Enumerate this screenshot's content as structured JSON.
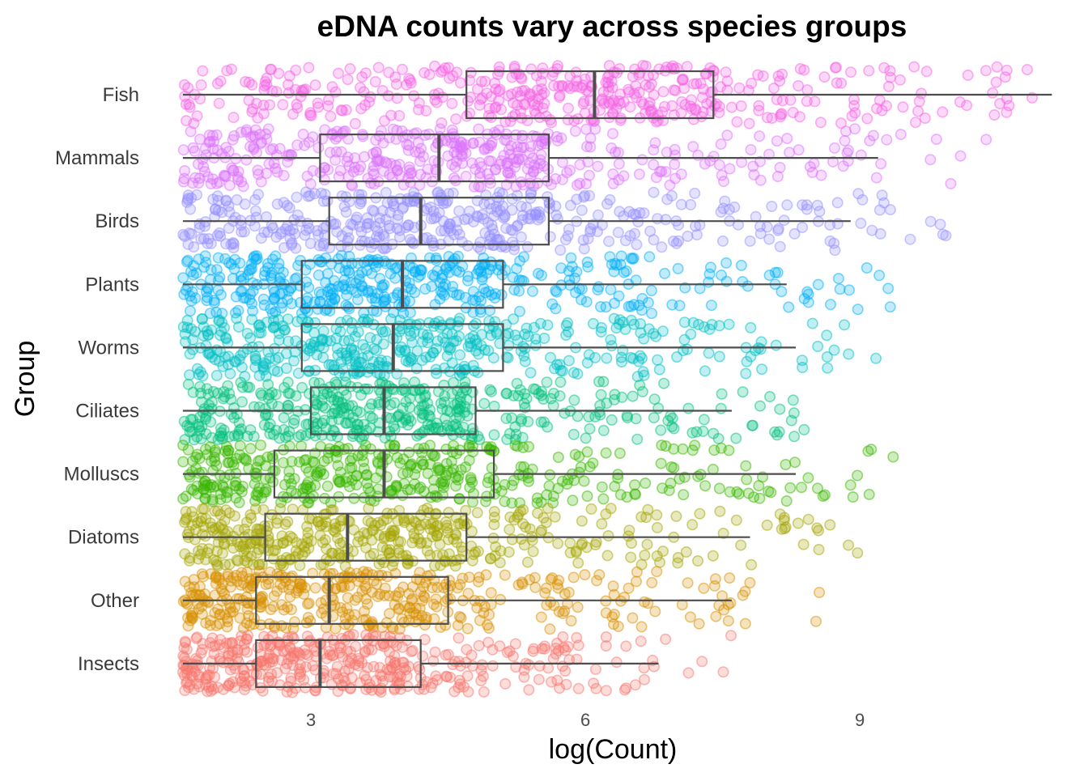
{
  "chart_data": {
    "type": "boxplot-jitter",
    "title": "eDNA counts vary across species groups",
    "xlabel": "log(Count)",
    "ylabel": "Group",
    "xlim": [
      1.3,
      11.3
    ],
    "xticks": [
      3,
      6,
      9
    ],
    "grid": false,
    "legend": "none",
    "orientation": "horizontal",
    "categories": [
      "Fish",
      "Mammals",
      "Birds",
      "Plants",
      "Worms",
      "Ciliates",
      "Molluscs",
      "Diatoms",
      "Other",
      "Insects"
    ],
    "series": [
      {
        "group": "Fish",
        "color": "#F564E3",
        "whisker_low": 1.6,
        "q1": 4.7,
        "median": 6.1,
        "q3": 7.4,
        "whisker_high": 11.1,
        "n_points": 450
      },
      {
        "group": "Mammals",
        "color": "#DB72FB",
        "whisker_low": 1.6,
        "q1": 3.1,
        "median": 4.4,
        "q3": 5.6,
        "whisker_high": 9.2,
        "n_points": 420
      },
      {
        "group": "Birds",
        "color": "#9590FF",
        "whisker_low": 1.6,
        "q1": 3.2,
        "median": 4.2,
        "q3": 5.6,
        "whisker_high": 8.9,
        "n_points": 420
      },
      {
        "group": "Plants",
        "color": "#00B0F6",
        "whisker_low": 1.6,
        "q1": 2.9,
        "median": 4.0,
        "q3": 5.1,
        "whisker_high": 8.2,
        "n_points": 420
      },
      {
        "group": "Worms",
        "color": "#00BFC4",
        "whisker_low": 1.6,
        "q1": 2.9,
        "median": 3.9,
        "q3": 5.1,
        "whisker_high": 8.3,
        "n_points": 420
      },
      {
        "group": "Ciliates",
        "color": "#00BF7D",
        "whisker_low": 1.6,
        "q1": 3.0,
        "median": 3.8,
        "q3": 4.8,
        "whisker_high": 7.6,
        "n_points": 420
      },
      {
        "group": "Molluscs",
        "color": "#39B600",
        "whisker_low": 1.6,
        "q1": 2.6,
        "median": 3.8,
        "q3": 5.0,
        "whisker_high": 8.3,
        "n_points": 420
      },
      {
        "group": "Diatoms",
        "color": "#A3A500",
        "whisker_low": 1.6,
        "q1": 2.5,
        "median": 3.4,
        "q3": 4.7,
        "whisker_high": 7.8,
        "n_points": 420
      },
      {
        "group": "Other",
        "color": "#D89000",
        "whisker_low": 1.6,
        "q1": 2.4,
        "median": 3.2,
        "q3": 4.5,
        "whisker_high": 7.6,
        "n_points": 400
      },
      {
        "group": "Insects",
        "color": "#F8766D",
        "whisker_low": 1.6,
        "q1": 2.4,
        "median": 3.1,
        "q3": 4.2,
        "whisker_high": 6.8,
        "n_points": 420
      }
    ]
  }
}
